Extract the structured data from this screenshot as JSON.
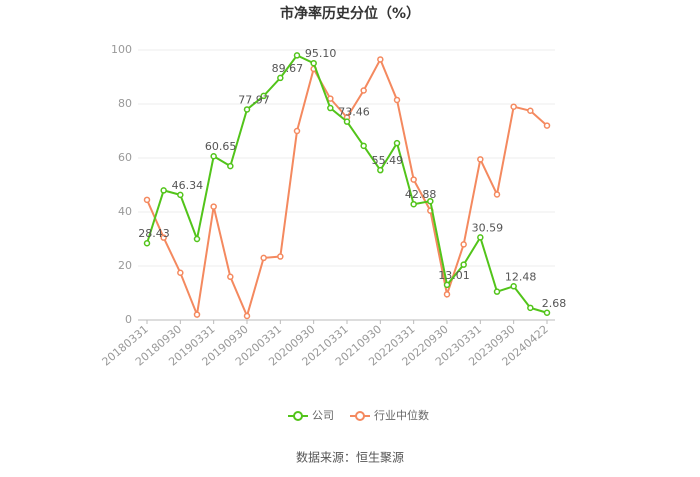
{
  "chart_data": {
    "type": "line",
    "title": "市净率历史分位（%）",
    "categories": [
      "20180331",
      null,
      "20180930",
      null,
      "20190331",
      null,
      "20190930",
      null,
      "20200331",
      null,
      "20200930",
      null,
      "20210331",
      null,
      "20210930",
      null,
      "20220331",
      null,
      "20220930",
      null,
      "20230331",
      null,
      "20230930",
      null,
      "20240422"
    ],
    "series": [
      {
        "name": "公司",
        "color": "#52c41a",
        "values": [
          28.43,
          48,
          46.34,
          30,
          60.65,
          57,
          77.97,
          83,
          89.67,
          98,
          95.1,
          78.5,
          73.46,
          64.5,
          55.49,
          65.5,
          42.88,
          44,
          13.01,
          20.5,
          30.59,
          10.5,
          12.48,
          4.5,
          2.68
        ],
        "value_labels": [
          "28.43",
          null,
          "46.34",
          null,
          "60.65",
          null,
          "77.97",
          null,
          "89.67",
          null,
          "95.10",
          null,
          "73.46",
          null,
          "55.49",
          null,
          "42.88",
          null,
          "13.01",
          null,
          "30.59",
          null,
          "12.48",
          null,
          "2.68"
        ]
      },
      {
        "name": "行业中位数",
        "color": "#f4895f",
        "values": [
          44.5,
          30.5,
          17.5,
          2,
          42,
          16,
          1.5,
          23,
          23.5,
          70,
          93,
          82,
          75,
          85,
          96.5,
          81.5,
          52,
          40.5,
          9.5,
          28,
          59.5,
          46.5,
          79,
          77.5,
          72
        ]
      }
    ],
    "ylim": [
      0,
      100
    ],
    "yticks": [
      0,
      20,
      40,
      60,
      80,
      100
    ],
    "grid": true,
    "source": "数据来源：恒生聚源"
  }
}
